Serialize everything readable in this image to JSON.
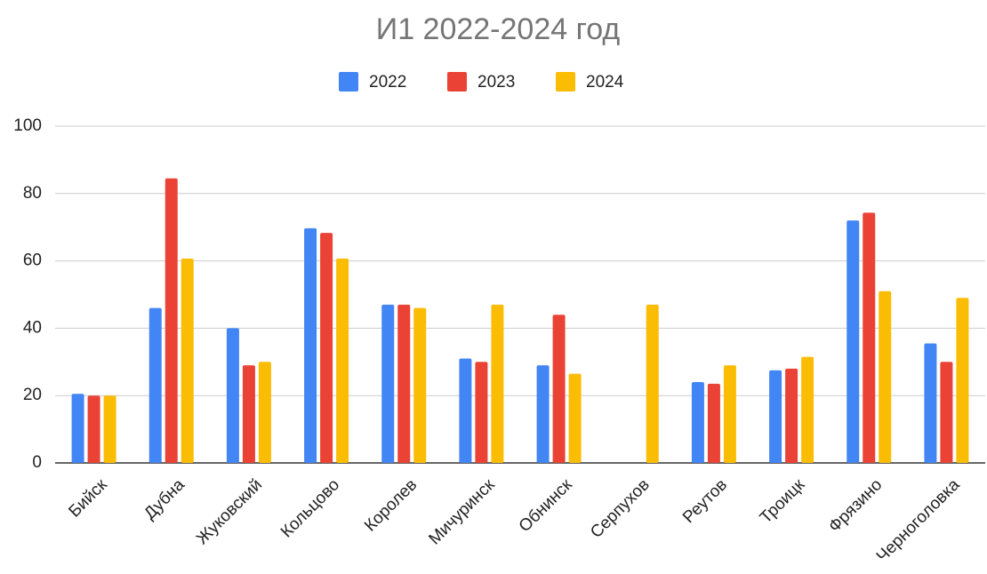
{
  "chart_data": {
    "type": "bar",
    "title": "И1 2022-2024 год",
    "categories": [
      "Бийск",
      "Дубна",
      "Жуковский",
      "Кольцово",
      "Королев",
      "Мичуринск",
      "Обнинск",
      "Серпухов",
      "Реутов",
      "Троицк",
      "Фрязино",
      "Черноголовка"
    ],
    "series": [
      {
        "name": "2022",
        "color": "#4285f4",
        "values": [
          20.5,
          46,
          40,
          69.7,
          47,
          31,
          29,
          null,
          24,
          27.5,
          72,
          35.5
        ]
      },
      {
        "name": "2023",
        "color": "#ea4335",
        "values": [
          20,
          84.5,
          29,
          68.3,
          47,
          30,
          44,
          null,
          23.5,
          28,
          74.3,
          30
        ]
      },
      {
        "name": "2024",
        "color": "#fbbc04",
        "values": [
          20,
          60.7,
          30,
          60.7,
          46,
          47,
          26.5,
          47,
          29,
          31.5,
          51,
          49
        ]
      }
    ],
    "ylim": [
      0,
      100
    ],
    "yticks": [
      0,
      20,
      40,
      60,
      80,
      100
    ],
    "grid": true,
    "legend": "top"
  }
}
